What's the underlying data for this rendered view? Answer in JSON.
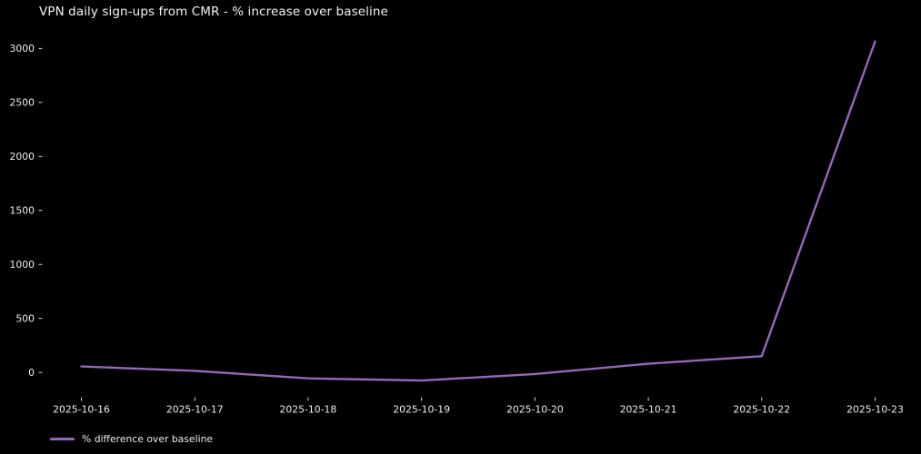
{
  "figure": {
    "background": "#000000",
    "text_color": "#ededed",
    "title": "VPN daily sign-ups from CMR - % increase over baseline"
  },
  "legend": {
    "label": "% difference over baseline",
    "swatch_color": "#9467bd"
  },
  "chart_data": {
    "type": "line",
    "title": "VPN daily sign-ups from CMR - % increase over baseline",
    "categories": [
      "2025-10-16",
      "2025-10-17",
      "2025-10-18",
      "2025-10-19",
      "2025-10-20",
      "2025-10-21",
      "2025-10-22",
      "2025-10-23"
    ],
    "series": [
      {
        "name": "% difference over baseline",
        "color": "#9467bd",
        "values": [
          55,
          15,
          -55,
          -75,
          -15,
          80,
          150,
          3065
        ]
      }
    ],
    "xlabel": "",
    "ylabel": "",
    "y_ticks": [
      0,
      500,
      1000,
      1500,
      2000,
      2500,
      3000
    ],
    "ylim": [
      -230,
      3230
    ],
    "grid": false,
    "legend_position": "bottom-left"
  }
}
